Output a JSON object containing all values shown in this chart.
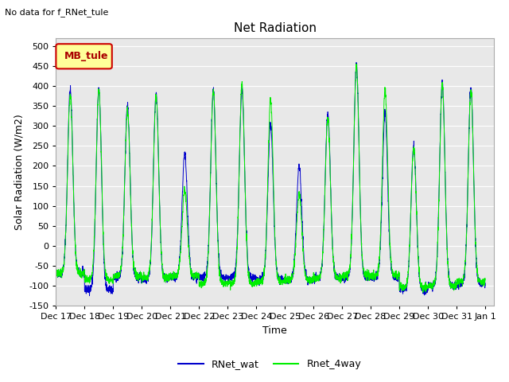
{
  "title": "Net Radiation",
  "top_left_text": "No data for f_RNet_tule",
  "ylabel": "Solar Radiation (W/m2)",
  "xlabel": "Time",
  "ylim": [
    -150,
    520
  ],
  "yticks": [
    -150,
    -100,
    -50,
    0,
    50,
    100,
    150,
    200,
    250,
    300,
    350,
    400,
    450,
    500
  ],
  "bg_color": "#e8e8e8",
  "fig_color": "#ffffff",
  "line1_color": "#0000cc",
  "line2_color": "#00ee00",
  "line1_label": "RNet_wat",
  "line2_label": "Rnet_4way",
  "legend_box_label": "MB_tule",
  "legend_box_facecolor": "#ffff99",
  "legend_box_edgecolor": "#cc0000",
  "legend_box_textcolor": "#aa0000",
  "title_fontsize": 11,
  "axis_fontsize": 9,
  "tick_fontsize": 8,
  "n_points": 3360,
  "n_days": 15,
  "daily_peaks_blue": [
    390,
    393,
    350,
    380,
    230,
    385,
    390,
    305,
    200,
    330,
    455,
    330,
    250,
    410,
    395
  ],
  "daily_peaks_green": [
    380,
    390,
    340,
    375,
    140,
    390,
    405,
    365,
    130,
    320,
    450,
    390,
    245,
    405,
    390
  ],
  "night_base_blue": [
    -70,
    -110,
    -80,
    -85,
    -80,
    -80,
    -80,
    -85,
    -85,
    -80,
    -80,
    -80,
    -110,
    -100,
    -95
  ],
  "night_base_green": [
    -70,
    -85,
    -75,
    -80,
    -75,
    -95,
    -95,
    -90,
    -85,
    -80,
    -75,
    -75,
    -105,
    -100,
    -90
  ],
  "xtick_labels": [
    "Dec 17",
    "Dec 18",
    "Dec 19",
    "Dec 20",
    "Dec 21",
    "Dec 22",
    "Dec 23",
    "Dec 24",
    "Dec 25",
    "Dec 26",
    "Dec 27",
    "Dec 28",
    "Dec 29",
    "Dec 30",
    "Dec 31",
    "Jan 1"
  ]
}
